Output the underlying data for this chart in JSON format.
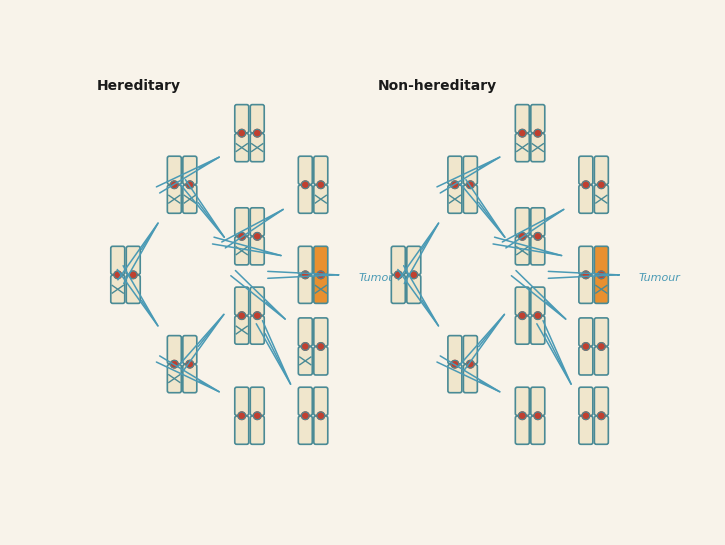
{
  "background_color": "#f8f3ea",
  "title_hereditary": "Hereditary",
  "title_non_hereditary": "Non-hereditary",
  "tumour_label": "Tumour",
  "title_color": "#1a1a1a",
  "title_fontsize": 10,
  "arrow_color": "#4a9ab5",
  "chrom_normal_fill": "#f0e6cc",
  "chrom_outline": "#4a8a95",
  "chrom_mutant_fill": "#e89030",
  "dot_color": "#c04030",
  "cross_color": "#4a8a95",
  "tumour_text_color": "#4a9ab5",
  "tumour_fontsize": 8
}
